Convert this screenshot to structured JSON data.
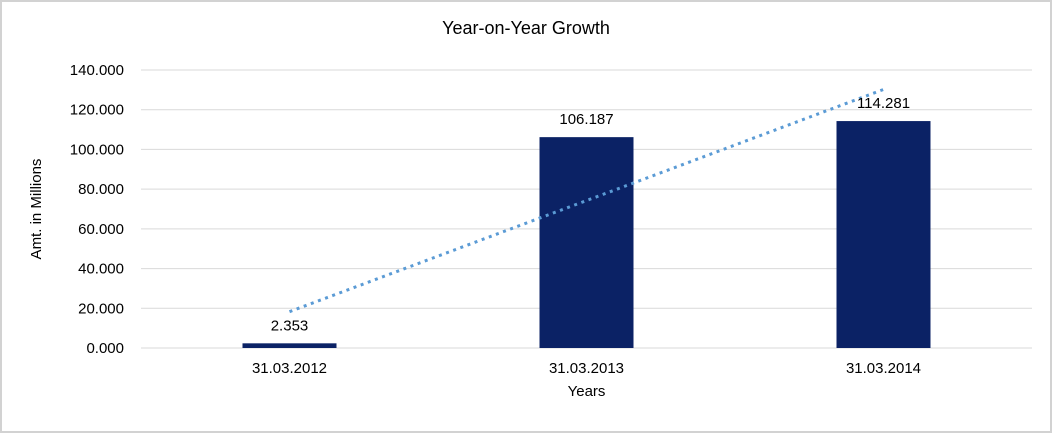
{
  "chart_data": {
    "type": "bar",
    "title": "Year-on-Year Growth",
    "xlabel": "Years",
    "ylabel": "Amt. in Millions",
    "categories": [
      "31.03.2012",
      "31.03.2013",
      "31.03.2014"
    ],
    "values": [
      2.353,
      106.187,
      114.281
    ],
    "data_labels": [
      "2.353",
      "106.187",
      "114.281"
    ],
    "ylim": [
      0,
      140
    ],
    "ytick_step": 20,
    "ytick_labels": [
      "0.000",
      "20.000",
      "40.000",
      "60.000",
      "80.000",
      "100.000",
      "120.000",
      "140.000"
    ],
    "grid": true,
    "legend_position": "none",
    "bar_color": "#0b2265",
    "gridline_color": "#d9d9d9",
    "text_color": "#000000",
    "trendline": {
      "type": "linear",
      "style": "dotted",
      "color": "#5b9bd5",
      "start_value": 18.3,
      "end_value": 130.2
    }
  }
}
